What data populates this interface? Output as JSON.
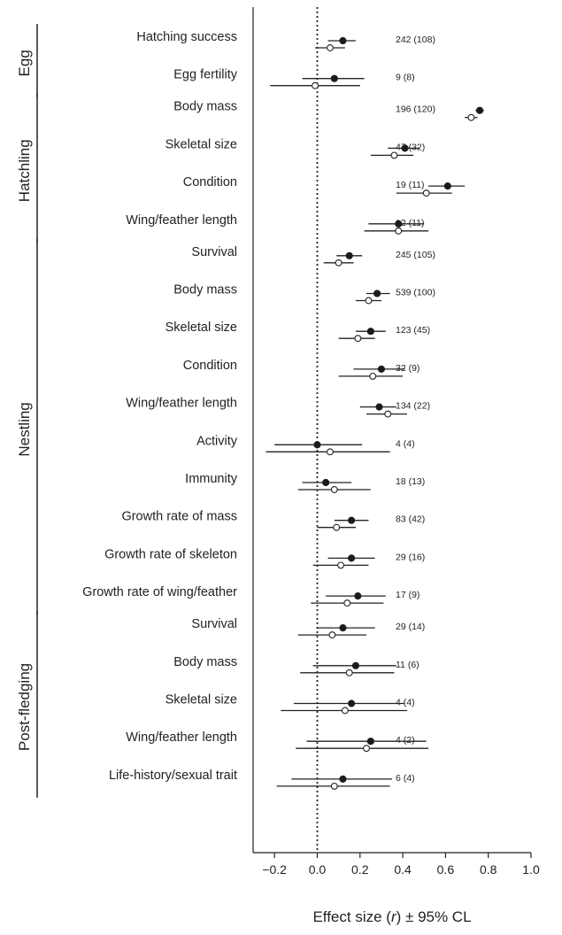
{
  "chart_data": {
    "type": "forest-plot",
    "xlabel": {
      "prefix": "Effect size (",
      "italic": "r",
      "suffix": ") ± 95% CL"
    },
    "xlim": [
      -0.3,
      1.0
    ],
    "xticks": [
      -0.2,
      0.0,
      0.2,
      0.4,
      0.6,
      0.8,
      1.0
    ],
    "xtick_labels": [
      "−0.2",
      "0.0",
      "0.2",
      "0.4",
      "0.6",
      "0.8",
      "1.0"
    ],
    "reference_line": 0,
    "series_styles": {
      "filled": "#1a1a1a",
      "open": "#ffffff"
    },
    "groups": [
      {
        "name": "Egg",
        "rows": [
          {
            "label": "Hatching success",
            "n": "242 (108)",
            "filled": [
              0.12,
              0.05,
              0.18
            ],
            "open": [
              0.06,
              -0.01,
              0.13
            ]
          },
          {
            "label": "Egg fertility",
            "n": "9 (8)",
            "filled": [
              0.08,
              -0.07,
              0.22
            ],
            "open": [
              -0.01,
              -0.22,
              0.2
            ]
          }
        ]
      },
      {
        "name": "Hatchling",
        "rows": [
          {
            "label": "Body mass",
            "n": "196 (120)",
            "filled": [
              0.76,
              0.74,
              0.78
            ],
            "open": [
              0.72,
              0.69,
              0.75
            ]
          },
          {
            "label": "Skeletal size",
            "n": "47 (32)",
            "filled": [
              0.41,
              0.33,
              0.48
            ],
            "open": [
              0.36,
              0.25,
              0.45
            ]
          },
          {
            "label": "Condition",
            "n": "19 (11)",
            "filled": [
              0.61,
              0.52,
              0.69
            ],
            "open": [
              0.51,
              0.37,
              0.63
            ]
          },
          {
            "label": "Wing/feather length",
            "n": "12 (11)",
            "filled": [
              0.38,
              0.24,
              0.5
            ],
            "open": [
              0.38,
              0.22,
              0.52
            ]
          }
        ]
      },
      {
        "name": "Nestling",
        "rows": [
          {
            "label": "Survival",
            "n": "245 (105)",
            "filled": [
              0.15,
              0.09,
              0.21
            ],
            "open": [
              0.1,
              0.03,
              0.17
            ]
          },
          {
            "label": "Body mass",
            "n": "539 (100)",
            "filled": [
              0.28,
              0.23,
              0.34
            ],
            "open": [
              0.24,
              0.18,
              0.3
            ]
          },
          {
            "label": "Skeletal size",
            "n": "123 (45)",
            "filled": [
              0.25,
              0.18,
              0.32
            ],
            "open": [
              0.19,
              0.1,
              0.27
            ]
          },
          {
            "label": "Condition",
            "n": "32 (9)",
            "filled": [
              0.3,
              0.17,
              0.41
            ],
            "open": [
              0.26,
              0.1,
              0.4
            ]
          },
          {
            "label": "Wing/feather length",
            "n": "134 (22)",
            "filled": [
              0.29,
              0.2,
              0.37
            ],
            "open": [
              0.33,
              0.23,
              0.42
            ]
          },
          {
            "label": "Activity",
            "n": "4 (4)",
            "filled": [
              0.0,
              -0.2,
              0.21
            ],
            "open": [
              0.06,
              -0.24,
              0.34
            ]
          },
          {
            "label": "Immunity",
            "n": "18 (13)",
            "filled": [
              0.04,
              -0.07,
              0.16
            ],
            "open": [
              0.08,
              -0.09,
              0.25
            ]
          },
          {
            "label": "Growth rate of mass",
            "n": "83 (42)",
            "filled": [
              0.16,
              0.08,
              0.24
            ],
            "open": [
              0.09,
              0.0,
              0.18
            ]
          },
          {
            "label": "Growth rate of skeleton",
            "n": "29 (16)",
            "filled": [
              0.16,
              0.05,
              0.27
            ],
            "open": [
              0.11,
              -0.02,
              0.24
            ]
          },
          {
            "label": "Growth rate of wing/feather",
            "n": "17 (9)",
            "filled": [
              0.19,
              0.04,
              0.32
            ],
            "open": [
              0.14,
              -0.03,
              0.31
            ]
          }
        ]
      },
      {
        "name": "Post-fledging",
        "rows": [
          {
            "label": "Survival",
            "n": "29 (14)",
            "filled": [
              0.12,
              0.0,
              0.27
            ],
            "open": [
              0.07,
              -0.09,
              0.23
            ]
          },
          {
            "label": "Body mass",
            "n": "11 (6)",
            "filled": [
              0.18,
              -0.02,
              0.37
            ],
            "open": [
              0.15,
              -0.08,
              0.36
            ]
          },
          {
            "label": "Skeletal size",
            "n": "4 (4)",
            "filled": [
              0.16,
              -0.11,
              0.41
            ],
            "open": [
              0.13,
              -0.17,
              0.42
            ]
          },
          {
            "label": "Wing/feather length",
            "n": "4 (2)",
            "filled": [
              0.25,
              -0.05,
              0.51
            ],
            "open": [
              0.23,
              -0.1,
              0.52
            ]
          },
          {
            "label": "Life-history/sexual trait",
            "n": "6 (4)",
            "filled": [
              0.12,
              -0.12,
              0.35
            ],
            "open": [
              0.08,
              -0.19,
              0.34
            ]
          }
        ]
      }
    ]
  }
}
